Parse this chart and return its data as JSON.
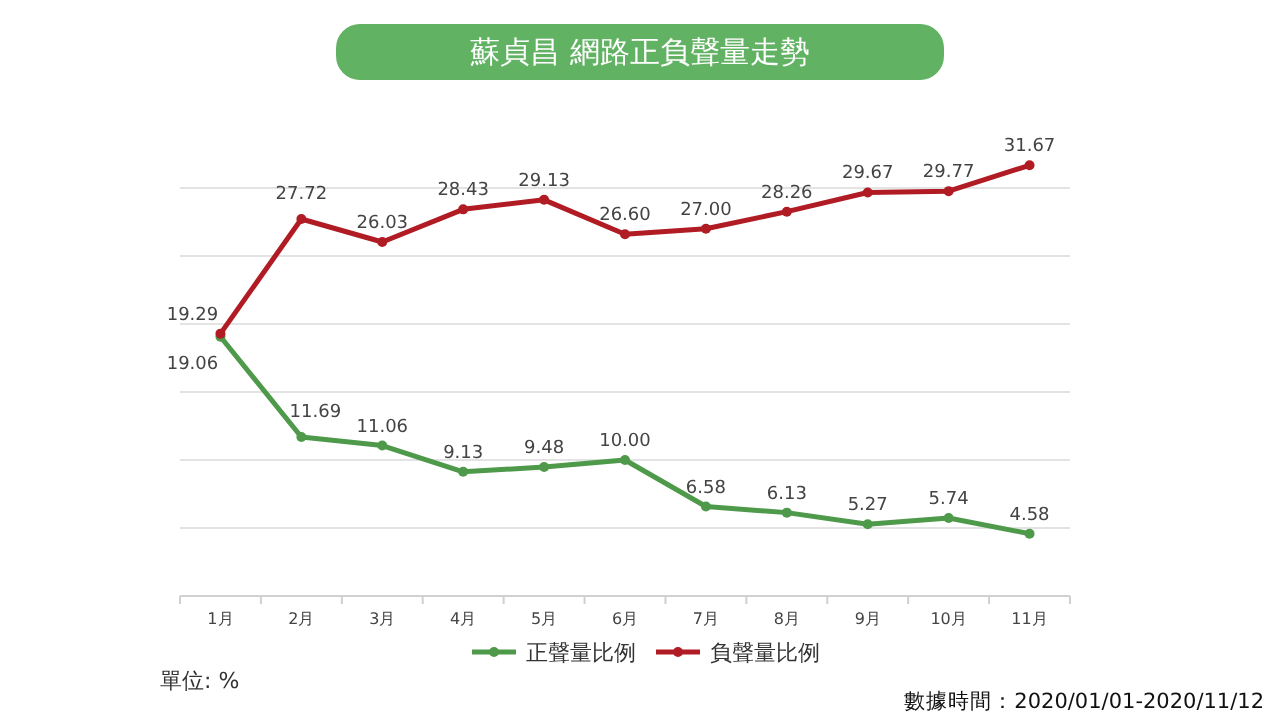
{
  "chart_data": {
    "type": "line",
    "title": "蘇貞昌 網路正負聲量走勢",
    "categories": [
      "1月",
      "2月",
      "3月",
      "4月",
      "5月",
      "6月",
      "7月",
      "8月",
      "9月",
      "10月",
      "11月"
    ],
    "series": [
      {
        "name": "正聲量比例",
        "color": "#4e9a4a",
        "values": [
          19.06,
          11.69,
          11.06,
          9.13,
          9.48,
          10.0,
          6.58,
          6.13,
          5.27,
          5.74,
          4.58
        ],
        "value_labels": [
          "19.06",
          "11.69",
          "11.06",
          "9.13",
          "9.48",
          "10.00",
          "6.58",
          "6.13",
          "5.27",
          "5.74",
          "4.58"
        ]
      },
      {
        "name": "負聲量比例",
        "color": "#b11c24",
        "values": [
          19.29,
          27.72,
          26.03,
          28.43,
          29.13,
          26.6,
          27.0,
          28.26,
          29.67,
          29.77,
          31.67
        ],
        "value_labels": [
          "19.29",
          "27.72",
          "26.03",
          "28.43",
          "29.13",
          "26.60",
          "27.00",
          "28.26",
          "29.67",
          "29.77",
          "31.67"
        ]
      }
    ],
    "yticks": [
      {
        "value": 5,
        "label": null
      },
      {
        "value": 10,
        "label": null
      },
      {
        "value": 15,
        "label": null
      },
      {
        "value": 20,
        "label": null
      },
      {
        "value": 25,
        "label": null
      },
      {
        "value": 30,
        "label": null
      }
    ],
    "tick_labels": "x",
    "grid": "y",
    "legend": "bottom",
    "marker": "circle",
    "line_style": "solid",
    "annotations": [
      "單位: %",
      "數據時間：2020/01/01-2020/11/12"
    ]
  }
}
